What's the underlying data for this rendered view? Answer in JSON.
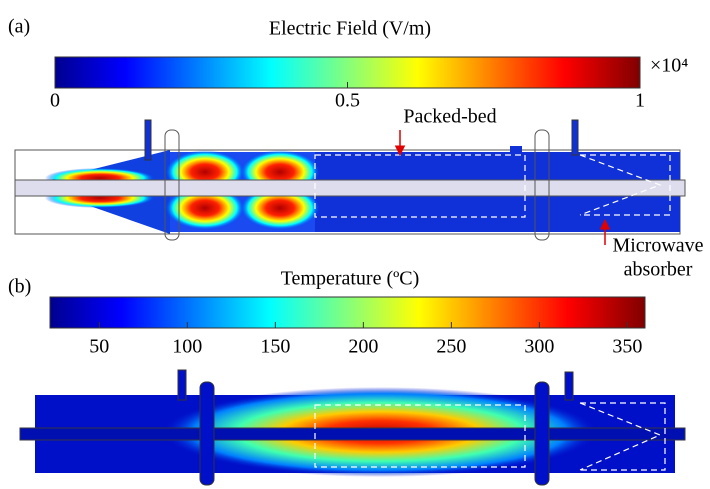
{
  "panels": [
    {
      "label": "(a)",
      "title": "Electric Field (V/m)",
      "multiplier": "×10⁴",
      "colorbar": {
        "lim": [
          0,
          1
        ],
        "ticks": [
          0,
          0.5,
          1
        ]
      },
      "annotations": [
        {
          "lines": [
            "Packed-bed"
          ]
        },
        {
          "lines": [
            "Microwave",
            "absorber"
          ]
        }
      ]
    },
    {
      "label": "(b)",
      "title": "Temperature (ºC)",
      "colorbar": {
        "lim": [
          22,
          360
        ],
        "ticks": [
          50,
          100,
          150,
          200,
          250,
          300,
          350
        ]
      },
      "annotations": []
    }
  ]
}
